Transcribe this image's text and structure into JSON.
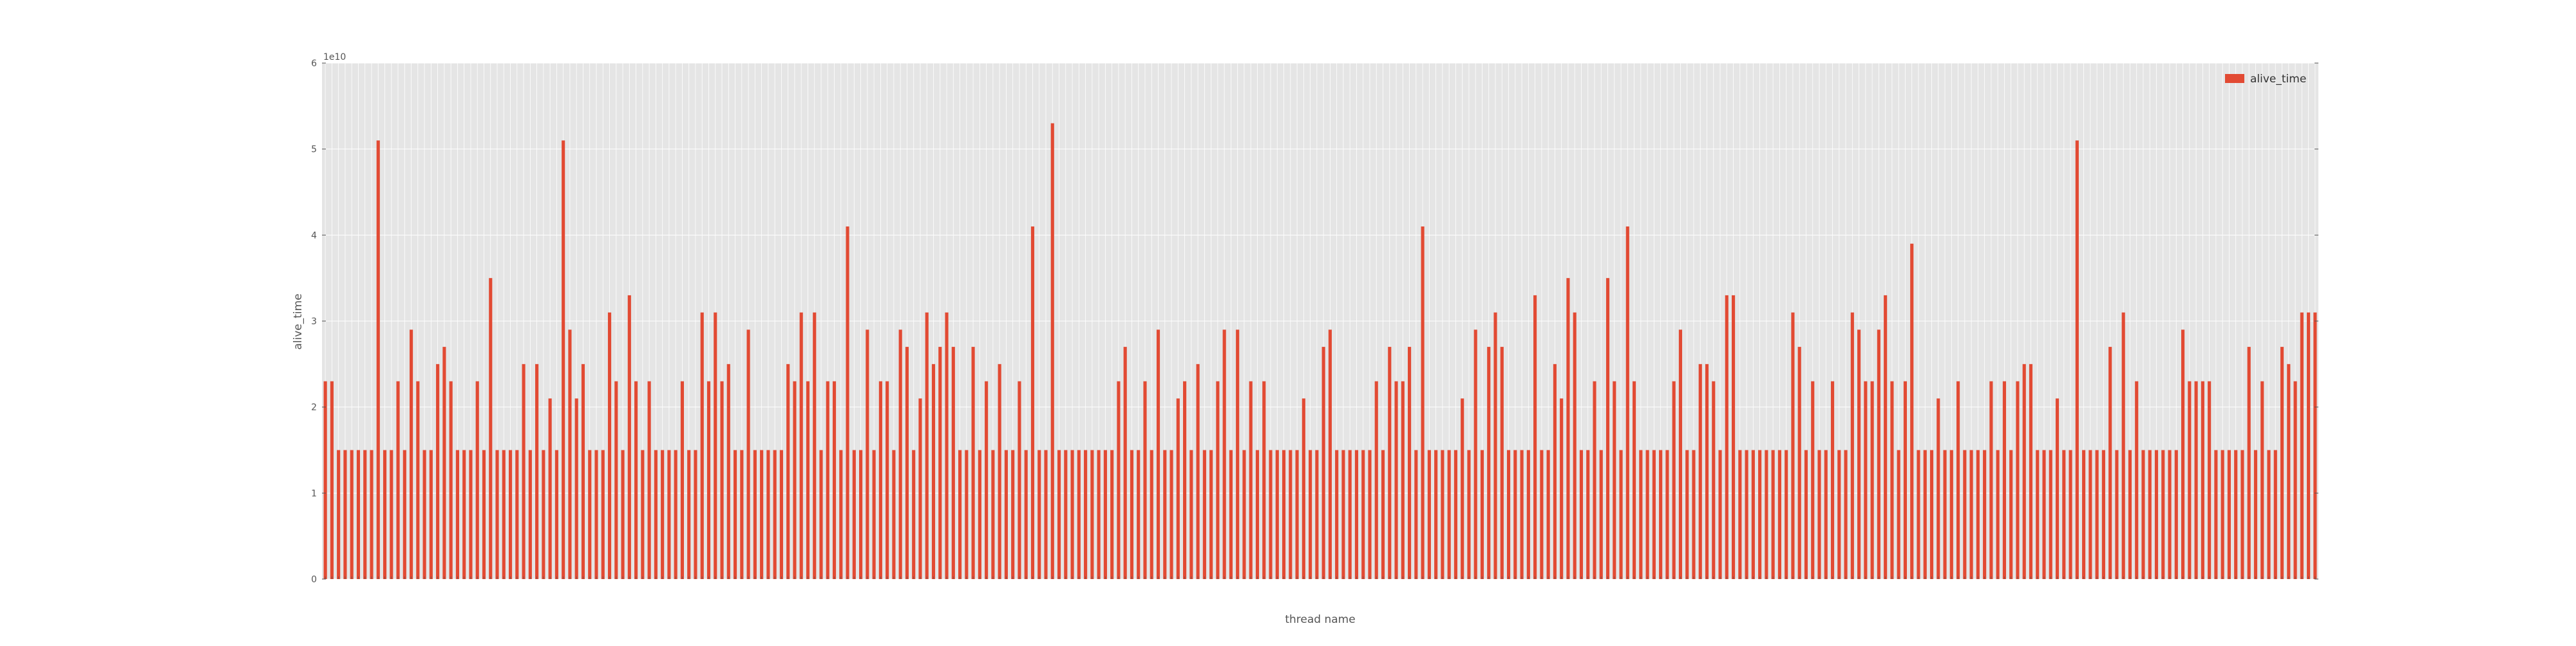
{
  "chart_data": {
    "type": "bar",
    "xlabel": "thread name",
    "ylabel": "alive_time",
    "y_multiplier_label": "1e10",
    "ylim": [
      0,
      6
    ],
    "yticks": [
      0,
      1,
      2,
      3,
      4,
      5,
      6
    ],
    "grid": true,
    "legend_position": "top-right",
    "series": [
      {
        "name": "alive_time",
        "color": "#e24a33",
        "values": [
          2.3,
          2.3,
          1.5,
          1.5,
          1.5,
          1.5,
          1.5,
          1.5,
          5.1,
          1.5,
          1.5,
          2.3,
          1.5,
          2.9,
          2.3,
          1.5,
          1.5,
          2.5,
          2.7,
          2.3,
          1.5,
          1.5,
          1.5,
          2.3,
          1.5,
          3.5,
          1.5,
          1.5,
          1.5,
          1.5,
          2.5,
          1.5,
          2.5,
          1.5,
          2.1,
          1.5,
          5.1,
          2.9,
          2.1,
          2.5,
          1.5,
          1.5,
          1.5,
          3.1,
          2.3,
          1.5,
          3.3,
          2.3,
          1.5,
          2.3,
          1.5,
          1.5,
          1.5,
          1.5,
          2.3,
          1.5,
          1.5,
          3.1,
          2.3,
          3.1,
          2.3,
          2.5,
          1.5,
          1.5,
          2.9,
          1.5,
          1.5,
          1.5,
          1.5,
          1.5,
          2.5,
          2.3,
          3.1,
          2.3,
          3.1,
          1.5,
          2.3,
          2.3,
          1.5,
          4.1,
          1.5,
          1.5,
          2.9,
          1.5,
          2.3,
          2.3,
          1.5,
          2.9,
          2.7,
          1.5,
          2.1,
          3.1,
          2.5,
          2.7,
          3.1,
          2.7,
          1.5,
          1.5,
          2.7,
          1.5,
          2.3,
          1.5,
          2.5,
          1.5,
          1.5,
          2.3,
          1.5,
          4.1,
          1.5,
          1.5,
          5.3,
          1.5,
          1.5,
          1.5,
          1.5,
          1.5,
          1.5,
          1.5,
          1.5,
          1.5,
          2.3,
          2.7,
          1.5,
          1.5,
          2.3,
          1.5,
          2.9,
          1.5,
          1.5,
          2.1,
          2.3,
          1.5,
          2.5,
          1.5,
          1.5,
          2.3,
          2.9,
          1.5,
          2.9,
          1.5,
          2.3,
          1.5,
          2.3,
          1.5,
          1.5,
          1.5,
          1.5,
          1.5,
          2.1,
          1.5,
          1.5,
          2.7,
          2.9,
          1.5,
          1.5,
          1.5,
          1.5,
          1.5,
          1.5,
          2.3,
          1.5,
          2.7,
          2.3,
          2.3,
          2.7,
          1.5,
          4.1,
          1.5,
          1.5,
          1.5,
          1.5,
          1.5,
          2.1,
          1.5,
          2.9,
          1.5,
          2.7,
          3.1,
          2.7,
          1.5,
          1.5,
          1.5,
          1.5,
          3.3,
          1.5,
          1.5,
          2.5,
          2.1,
          3.5,
          3.1,
          1.5,
          1.5,
          2.3,
          1.5,
          3.5,
          2.3,
          1.5,
          4.1,
          2.3,
          1.5,
          1.5,
          1.5,
          1.5,
          1.5,
          2.3,
          2.9,
          1.5,
          1.5,
          2.5,
          2.5,
          2.3,
          1.5,
          3.3,
          3.3,
          1.5,
          1.5,
          1.5,
          1.5,
          1.5,
          1.5,
          1.5,
          1.5,
          3.1,
          2.7,
          1.5,
          2.3,
          1.5,
          1.5,
          2.3,
          1.5,
          1.5,
          3.1,
          2.9,
          2.3,
          2.3,
          2.9,
          3.3,
          2.3,
          1.5,
          2.3,
          3.9,
          1.5,
          1.5,
          1.5,
          2.1,
          1.5,
          1.5,
          2.3,
          1.5,
          1.5,
          1.5,
          1.5,
          2.3,
          1.5,
          2.3,
          1.5,
          2.3,
          2.5,
          2.5,
          1.5,
          1.5,
          1.5,
          2.1,
          1.5,
          1.5,
          5.1,
          1.5,
          1.5,
          1.5,
          1.5,
          2.7,
          1.5,
          3.1,
          1.5,
          2.3,
          1.5,
          1.5,
          1.5,
          1.5,
          1.5,
          1.5,
          2.9,
          2.3,
          2.3,
          2.3,
          2.3,
          1.5,
          1.5,
          1.5,
          1.5,
          1.5,
          2.7,
          1.5,
          2.3,
          1.5,
          1.5,
          2.7,
          2.5,
          2.3,
          3.1,
          3.1,
          3.1
        ]
      }
    ]
  }
}
